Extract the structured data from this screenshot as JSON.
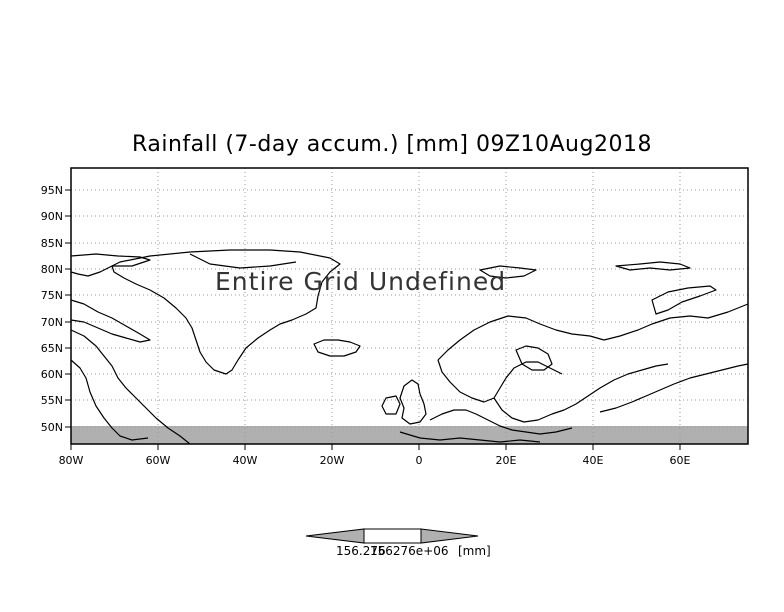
{
  "title": "Rainfall (7-day accum.) [mm] 09Z10Aug2018",
  "overlay_text": "Entire Grid Undefined",
  "y_ticks": [
    "95N",
    "90N",
    "85N",
    "80N",
    "75N",
    "70N",
    "65N",
    "60N",
    "55N",
    "50N"
  ],
  "x_ticks": [
    "80W",
    "60W",
    "40W",
    "20W",
    "0",
    "20E",
    "40E",
    "60E"
  ],
  "colorbar": {
    "low_label": "156.276",
    "high_label": "156276e+06",
    "unit": "[mm]"
  },
  "colors": {
    "undefined_band": "#b0b0b0",
    "coast": "#000000",
    "grid": "#9a9a9a"
  }
}
